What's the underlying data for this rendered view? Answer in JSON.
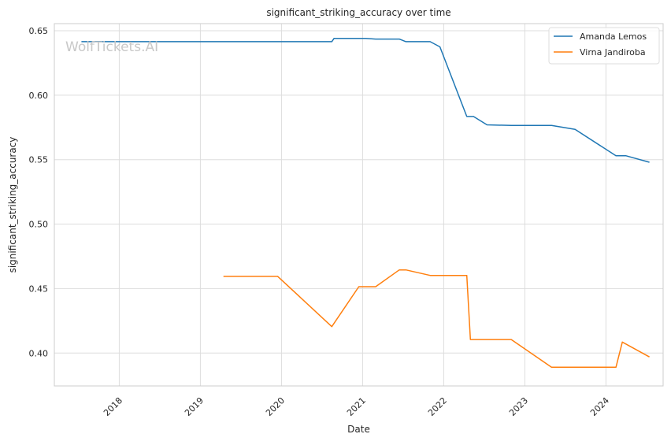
{
  "chart_data": {
    "type": "line",
    "title": "significant_striking_accuracy over time",
    "xlabel": "Date",
    "ylabel": "significant_striking_accuracy",
    "watermark": "WolfTickets.AI",
    "x_ticks": [
      "2018",
      "2019",
      "2020",
      "2021",
      "2022",
      "2023",
      "2024"
    ],
    "y_ticks": [
      "0.40",
      "0.45",
      "0.50",
      "0.55",
      "0.60",
      "0.65"
    ],
    "ylim": [
      0.3745,
      0.6555
    ],
    "xlim": [
      "2017-03-15",
      "2024-09-15"
    ],
    "grid": true,
    "legend_position": "top-right",
    "series": [
      {
        "name": "Amanda Lemos",
        "color": "#1f77b4",
        "points": [
          [
            "2017-07-15",
            0.6415
          ],
          [
            "2020-08-15",
            0.6415
          ],
          [
            "2020-08-25",
            0.644
          ],
          [
            "2021-01-15",
            0.644
          ],
          [
            "2021-03-01",
            0.6435
          ],
          [
            "2021-06-15",
            0.6435
          ],
          [
            "2021-07-15",
            0.6415
          ],
          [
            "2021-11-01",
            0.6415
          ],
          [
            "2021-12-15",
            0.6375
          ],
          [
            "2022-04-15",
            0.5835
          ],
          [
            "2022-05-15",
            0.5835
          ],
          [
            "2022-07-15",
            0.577
          ],
          [
            "2022-11-01",
            0.5765
          ],
          [
            "2023-05-01",
            0.5765
          ],
          [
            "2023-08-15",
            0.5735
          ],
          [
            "2024-02-15",
            0.553
          ],
          [
            "2024-04-01",
            0.553
          ],
          [
            "2024-07-15",
            0.548
          ]
        ]
      },
      {
        "name": "Virna Jandiroba",
        "color": "#ff7f0e",
        "points": [
          [
            "2019-04-15",
            0.4595
          ],
          [
            "2019-12-15",
            0.4595
          ],
          [
            "2020-08-15",
            0.4205
          ],
          [
            "2020-12-15",
            0.4515
          ],
          [
            "2021-03-01",
            0.4515
          ],
          [
            "2021-06-15",
            0.4645
          ],
          [
            "2021-07-15",
            0.4645
          ],
          [
            "2021-11-01",
            0.4602
          ],
          [
            "2022-04-15",
            0.4602
          ],
          [
            "2022-05-01",
            0.4105
          ],
          [
            "2022-11-01",
            0.4105
          ],
          [
            "2023-05-01",
            0.389
          ],
          [
            "2024-02-15",
            0.389
          ],
          [
            "2024-03-15",
            0.4085
          ],
          [
            "2024-07-15",
            0.397
          ]
        ]
      }
    ]
  }
}
